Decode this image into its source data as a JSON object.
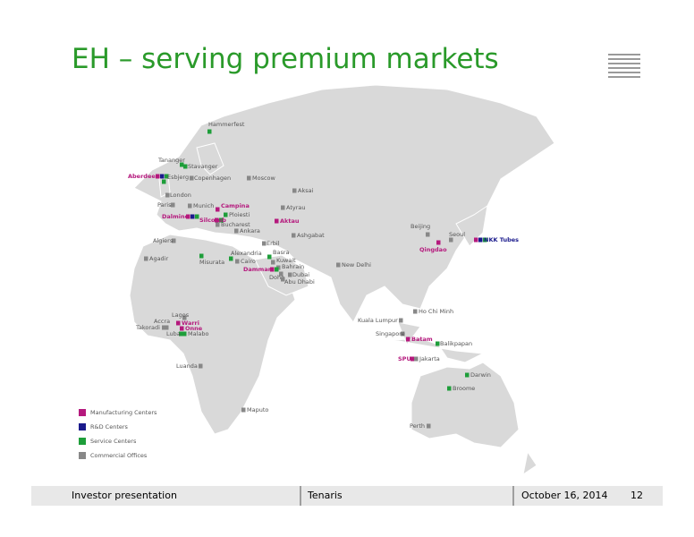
{
  "header": {
    "title": "EH – serving premium markets"
  },
  "map": {
    "locations": [
      {
        "label": "Hammerfest",
        "color": "#555555",
        "markers": [
          "#1e9e3a"
        ]
      },
      {
        "label": "Tananger",
        "color": "#555555",
        "markers": [
          "#1e9e3a"
        ]
      },
      {
        "label": "Stavanger",
        "color": "#555555",
        "markers": [
          "#1e9e3a"
        ]
      },
      {
        "label": "Aberdeen",
        "color": "#b5197d",
        "markers": [
          "#b5197d",
          "#1a1a8c",
          "#1e9e3a"
        ]
      },
      {
        "label": "Esbjerg",
        "color": "#555555",
        "markers": [
          "#1e9e3a"
        ]
      },
      {
        "label": "Copenhagen",
        "color": "#555555",
        "markers": [
          "#888888"
        ]
      },
      {
        "label": "Moscow",
        "color": "#555555",
        "markers": [
          "#888888"
        ]
      },
      {
        "label": "London",
        "color": "#555555",
        "markers": [
          "#888888"
        ]
      },
      {
        "label": "Paris",
        "color": "#555555",
        "markers": [
          "#888888"
        ]
      },
      {
        "label": "Munich",
        "color": "#555555",
        "markers": [
          "#888888"
        ]
      },
      {
        "label": "Campina",
        "color": "#b5197d",
        "markers": [
          "#b5197d"
        ]
      },
      {
        "label": "Aksai",
        "color": "#555555",
        "markers": [
          "#888888"
        ]
      },
      {
        "label": "Atyrau",
        "color": "#555555",
        "markers": [
          "#888888"
        ]
      },
      {
        "label": "Dalmine",
        "color": "#b5197d",
        "markers": [
          "#b5197d",
          "#1a1a8c",
          "#1e9e3a"
        ]
      },
      {
        "label": "Ploiesti",
        "color": "#555555",
        "markers": [
          "#1e9e3a"
        ]
      },
      {
        "label": "Silcotub",
        "color": "#b5197d",
        "markers": [
          "#b5197d",
          "#1e9e3a"
        ]
      },
      {
        "label": "Bucharest",
        "color": "#555555",
        "markers": [
          "#888888"
        ]
      },
      {
        "label": "Aktau",
        "color": "#b5197d",
        "markers": [
          "#b5197d"
        ]
      },
      {
        "label": "Ankara",
        "color": "#555555",
        "markers": [
          "#888888"
        ]
      },
      {
        "label": "Ashgabat",
        "color": "#555555",
        "markers": [
          "#888888"
        ]
      },
      {
        "label": "Beijing",
        "color": "#555555",
        "markers": [
          "#888888"
        ]
      },
      {
        "label": "Seoul",
        "color": "#555555",
        "markers": [
          "#888888"
        ]
      },
      {
        "label": "NKK Tubes",
        "color": "#1a1a8c",
        "markers": [
          "#b5197d",
          "#1a1a8c",
          "#1e9e3a"
        ]
      },
      {
        "label": "Qingdao",
        "color": "#b5197d",
        "markers": [
          "#b5197d"
        ]
      },
      {
        "label": "Algiers",
        "color": "#555555",
        "markers": [
          "#888888"
        ]
      },
      {
        "label": "Erbil",
        "color": "#555555",
        "markers": [
          "#888888"
        ]
      },
      {
        "label": "Basra",
        "color": "#555555",
        "markers": [
          "#1e9e3a"
        ]
      },
      {
        "label": "Agadir",
        "color": "#555555",
        "markers": [
          "#888888"
        ]
      },
      {
        "label": "Alexandria",
        "color": "#555555",
        "markers": [
          "#1e9e3a"
        ]
      },
      {
        "label": "Misurata",
        "color": "#555555",
        "markers": [
          "#1e9e3a"
        ]
      },
      {
        "label": "Cairo",
        "color": "#555555",
        "markers": [
          "#888888"
        ]
      },
      {
        "label": "Kuwait",
        "color": "#555555",
        "markers": [
          "#888888"
        ]
      },
      {
        "label": "Bahrain",
        "color": "#555555",
        "markers": [
          "#888888"
        ]
      },
      {
        "label": "Dammam",
        "color": "#b5197d",
        "markers": [
          "#b5197d",
          "#1e9e3a"
        ]
      },
      {
        "label": "New Delhi",
        "color": "#555555",
        "markers": [
          "#888888"
        ]
      },
      {
        "label": "Doha",
        "color": "#555555",
        "markers": [
          "#888888"
        ]
      },
      {
        "label": "Dubai",
        "color": "#555555",
        "markers": [
          "#888888"
        ]
      },
      {
        "label": "Abu Dhabi",
        "color": "#555555",
        "markers": [
          "#888888"
        ]
      },
      {
        "label": "Ho Chi Minh",
        "color": "#555555",
        "markers": [
          "#888888"
        ]
      },
      {
        "label": "Kuala Lumpur",
        "color": "#555555",
        "markers": [
          "#888888"
        ]
      },
      {
        "label": "Singapore",
        "color": "#555555",
        "markers": [
          "#888888"
        ]
      },
      {
        "label": "Batam",
        "color": "#b5197d",
        "markers": [
          "#b5197d"
        ]
      },
      {
        "label": "Balikpapan",
        "color": "#555555",
        "markers": [
          "#1e9e3a"
        ]
      },
      {
        "label": "Lagos",
        "color": "#555555",
        "markers": [
          "#888888"
        ]
      },
      {
        "label": "Warri",
        "color": "#b5197d",
        "markers": [
          "#b5197d"
        ]
      },
      {
        "label": "Onne",
        "color": "#b5197d",
        "markers": [
          "#b5197d"
        ]
      },
      {
        "label": "Accra",
        "color": "#555555",
        "markers": [
          "#888888"
        ]
      },
      {
        "label": "Takoradi",
        "color": "#555555",
        "markers": [
          "#888888"
        ]
      },
      {
        "label": "Luba",
        "color": "#555555",
        "markers": [
          "#1e9e3a"
        ]
      },
      {
        "label": "Malabo",
        "color": "#555555",
        "markers": [
          "#1e9e3a"
        ]
      },
      {
        "label": "SPU",
        "color": "#b5197d",
        "markers": [
          "#b5197d"
        ]
      },
      {
        "label": "Jakarta",
        "color": "#555555",
        "markers": [
          "#888888"
        ]
      },
      {
        "label": "Luanda",
        "color": "#555555",
        "markers": [
          "#888888"
        ]
      },
      {
        "label": "Darwin",
        "color": "#555555",
        "markers": [
          "#1e9e3a"
        ]
      },
      {
        "label": "Broome",
        "color": "#555555",
        "markers": [
          "#1e9e3a"
        ]
      },
      {
        "label": "Maputo",
        "color": "#555555",
        "markers": [
          "#888888"
        ]
      },
      {
        "label": "Perth",
        "color": "#555555",
        "markers": [
          "#888888"
        ]
      }
    ]
  },
  "legend": [
    {
      "label": "Manufacturing Centers",
      "color": "#b5197d"
    },
    {
      "label": "R&D Centers",
      "color": "#1a1a8c"
    },
    {
      "label": "Service Centers",
      "color": "#1e9e3a"
    },
    {
      "label": "Commercial Offices",
      "color": "#888888"
    }
  ],
  "footer": {
    "left": "Investor presentation",
    "center": "Tenaris",
    "date": "October 16, 2014",
    "page": "12"
  }
}
